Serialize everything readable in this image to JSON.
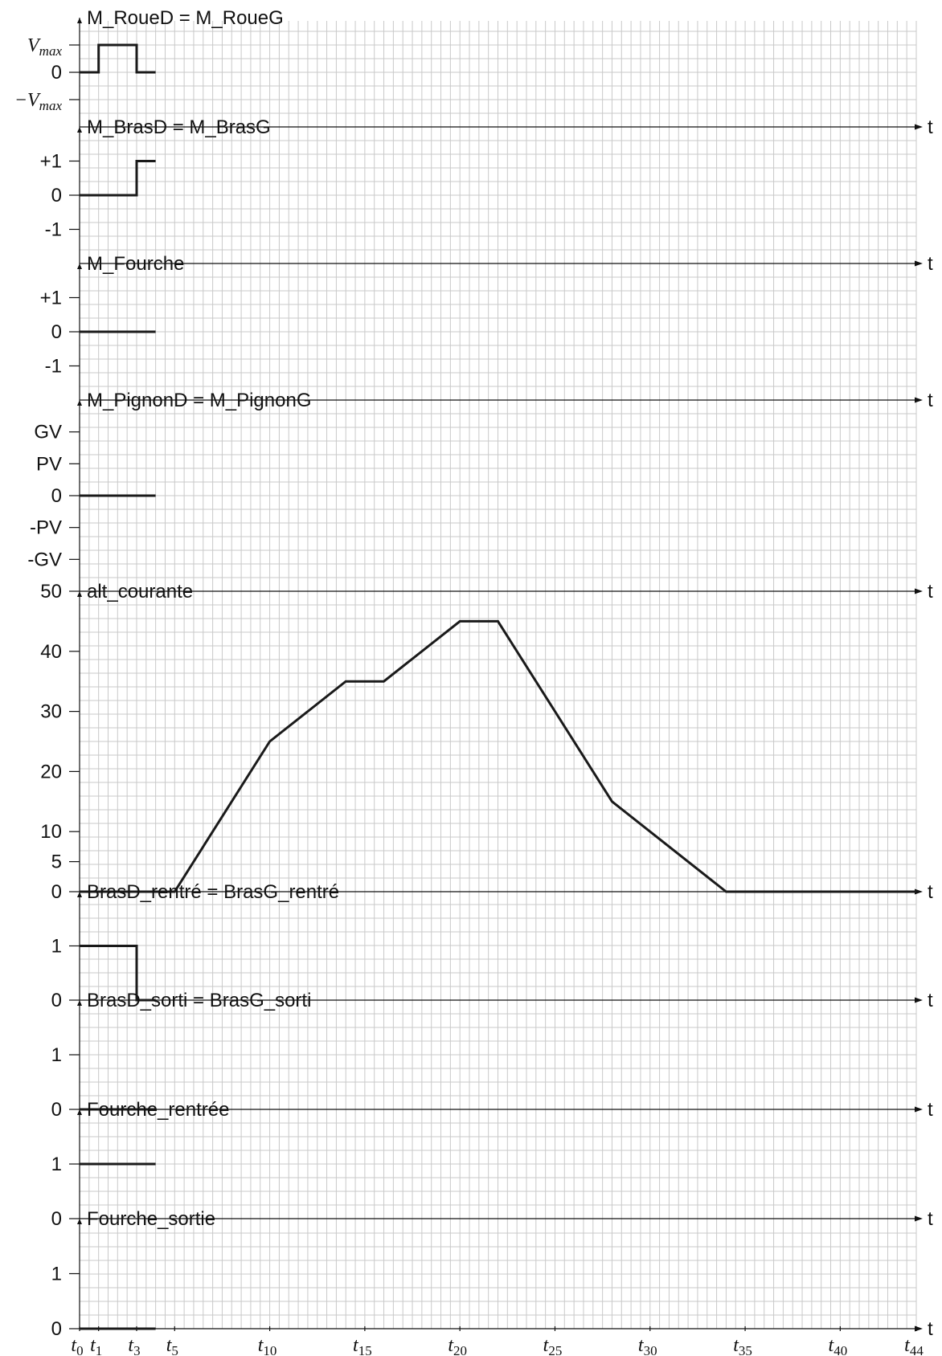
{
  "chart_data": {
    "type": "line",
    "time_axis": {
      "label": "t",
      "range": [
        0,
        44
      ],
      "ticks": [
        {
          "t": 0,
          "label": "0"
        },
        {
          "t": 1,
          "label": "1"
        },
        {
          "t": 3,
          "label": "3"
        },
        {
          "t": 5,
          "label": "5"
        },
        {
          "t": 10,
          "label": "10"
        },
        {
          "t": 15,
          "label": "15"
        },
        {
          "t": 20,
          "label": "20"
        },
        {
          "t": 25,
          "label": "25"
        },
        {
          "t": 30,
          "label": "30"
        },
        {
          "t": 35,
          "label": "35"
        },
        {
          "t": 40,
          "label": "40"
        },
        {
          "t": 44,
          "label": "44"
        }
      ]
    },
    "grid": true,
    "panels": [
      {
        "title": "M_RoueD = M_RoueG",
        "yrange": [
          -2,
          2
        ],
        "yticks": [
          {
            "v": 1,
            "label": "V",
            "sub": "max",
            "neg": false
          },
          {
            "v": 0,
            "label": "0"
          },
          {
            "v": -1,
            "label": "V",
            "sub": "max",
            "neg": true
          }
        ],
        "points": [
          [
            0,
            0
          ],
          [
            1,
            0
          ],
          [
            1,
            1
          ],
          [
            3,
            1
          ],
          [
            3,
            0
          ],
          [
            4,
            0
          ]
        ]
      },
      {
        "title": "M_BrasD = M_BrasG",
        "yrange": [
          -2,
          2
        ],
        "yticks": [
          {
            "v": 1,
            "label": "+1"
          },
          {
            "v": 0,
            "label": "0"
          },
          {
            "v": -1,
            "label": "-1"
          }
        ],
        "points": [
          [
            0,
            0
          ],
          [
            3,
            0
          ],
          [
            3,
            1
          ],
          [
            4,
            1
          ]
        ]
      },
      {
        "title": "M_Fourche",
        "yrange": [
          -2,
          2
        ],
        "yticks": [
          {
            "v": 1,
            "label": "+1"
          },
          {
            "v": 0,
            "label": "0"
          },
          {
            "v": -1,
            "label": "-1"
          }
        ],
        "points": [
          [
            0,
            0
          ],
          [
            4,
            0
          ]
        ]
      },
      {
        "title": "M_PignonD = M_PignonG",
        "yrange": [
          -3,
          3
        ],
        "yticks": [
          {
            "v": 2,
            "label": "GV"
          },
          {
            "v": 1,
            "label": "PV"
          },
          {
            "v": 0,
            "label": "0"
          },
          {
            "v": -1,
            "label": "-PV"
          },
          {
            "v": -2,
            "label": "-GV"
          }
        ],
        "points": [
          [
            0,
            0
          ],
          [
            4,
            0
          ]
        ]
      },
      {
        "title": "alt_courante",
        "yrange": [
          0,
          50
        ],
        "yticks": [
          {
            "v": 50,
            "label": "50"
          },
          {
            "v": 40,
            "label": "40"
          },
          {
            "v": 30,
            "label": "30"
          },
          {
            "v": 20,
            "label": "20"
          },
          {
            "v": 10,
            "label": "10"
          },
          {
            "v": 5,
            "label": "5"
          },
          {
            "v": 0,
            "label": "0"
          }
        ],
        "points": [
          [
            0,
            0
          ],
          [
            5,
            0
          ],
          [
            10,
            25
          ],
          [
            14,
            35
          ],
          [
            16,
            35
          ],
          [
            20,
            45
          ],
          [
            22,
            45
          ],
          [
            28,
            15
          ],
          [
            34,
            0
          ],
          [
            44,
            0
          ]
        ]
      },
      {
        "title": "BrasD_rentré = BrasG_rentré",
        "yrange": [
          0,
          2
        ],
        "yticks": [
          {
            "v": 1,
            "label": "1"
          },
          {
            "v": 0,
            "label": "0"
          }
        ],
        "points": [
          [
            0,
            1
          ],
          [
            3,
            1
          ],
          [
            3,
            0
          ],
          [
            4,
            0
          ]
        ]
      },
      {
        "title": "BrasD_sorti = BrasG_sorti",
        "yrange": [
          0,
          2
        ],
        "yticks": [
          {
            "v": 1,
            "label": "1"
          },
          {
            "v": 0,
            "label": "0"
          }
        ],
        "points": [
          [
            0,
            0
          ],
          [
            4,
            0
          ]
        ]
      },
      {
        "title": "Fourche_rentrée",
        "yrange": [
          0,
          2
        ],
        "yticks": [
          {
            "v": 1,
            "label": "1"
          },
          {
            "v": 0,
            "label": "0"
          }
        ],
        "points": [
          [
            0,
            1
          ],
          [
            4,
            1
          ]
        ]
      },
      {
        "title": "Fourche_sortie",
        "yrange": [
          0,
          2
        ],
        "yticks": [
          {
            "v": 1,
            "label": "1"
          },
          {
            "v": 0,
            "label": "0"
          }
        ],
        "points": [
          [
            0,
            0
          ],
          [
            4,
            0
          ]
        ]
      }
    ]
  }
}
